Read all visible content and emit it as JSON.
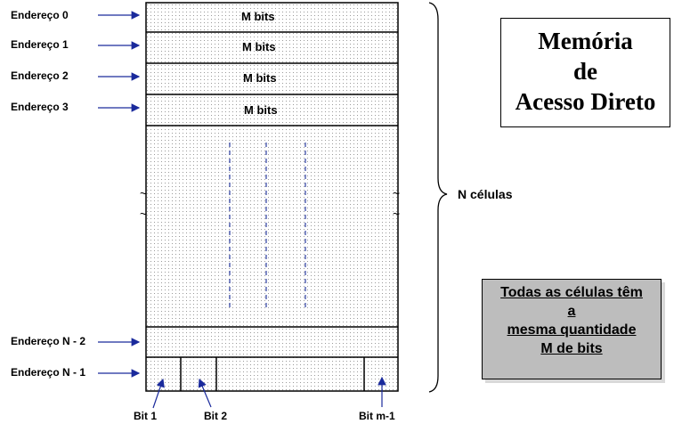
{
  "addresses": [
    {
      "label": "Endereço 0",
      "cell": "M bits"
    },
    {
      "label": "Endereço 1",
      "cell": "M bits"
    },
    {
      "label": "Endereço 2",
      "cell": "M bits"
    },
    {
      "label": "Endereço 3",
      "cell": "M bits"
    }
  ],
  "address_n2": "Endereço N - 2",
  "address_n1": "Endereço N - 1",
  "bits": [
    "Bit 1",
    "Bit 2",
    "Bit m-1"
  ],
  "brace_label": "N células",
  "title_lines": [
    "Memória",
    "de",
    "Acesso Direto"
  ],
  "note_lines": [
    "Todas as células têm",
    "a",
    "mesma quantidade",
    "M de bits"
  ]
}
